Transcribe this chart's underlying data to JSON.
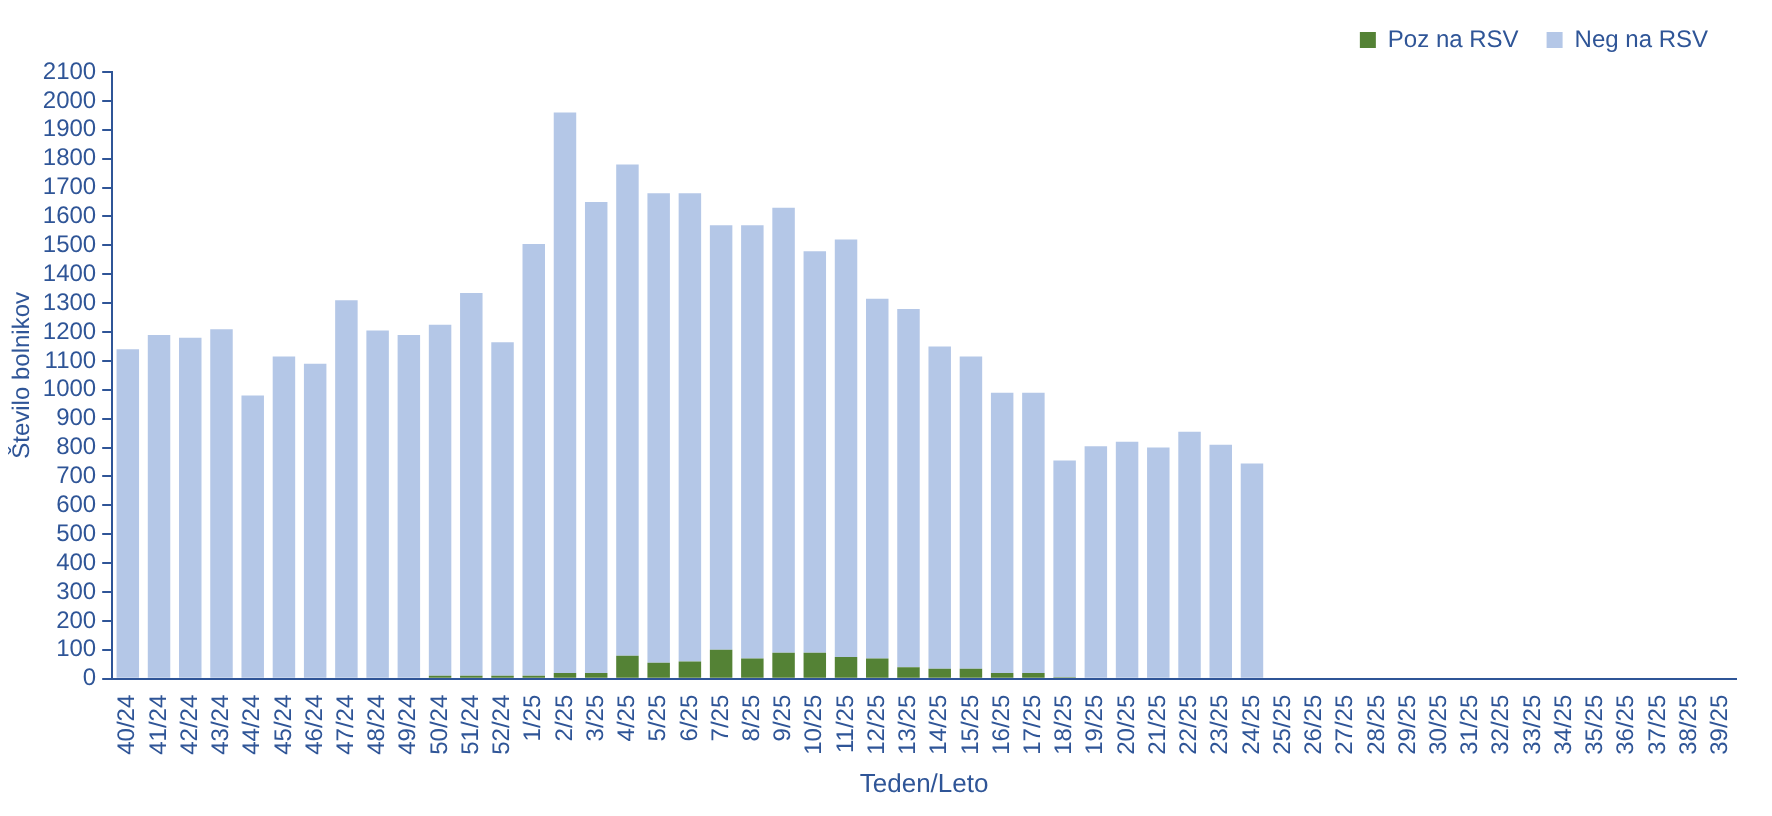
{
  "chart_data": {
    "type": "bar",
    "stacked": true,
    "xlabel": "Teden/Leto",
    "ylabel": "Število bolnikov",
    "categories": [
      "40/24",
      "41/24",
      "42/24",
      "43/24",
      "44/24",
      "45/24",
      "46/24",
      "47/24",
      "48/24",
      "49/24",
      "50/24",
      "51/24",
      "52/24",
      "1/25",
      "2/25",
      "3/25",
      "4/25",
      "5/25",
      "6/25",
      "7/25",
      "8/25",
      "9/25",
      "10/25",
      "11/25",
      "12/25",
      "13/25",
      "14/25",
      "15/25",
      "16/25",
      "17/25",
      "18/25",
      "19/25",
      "20/25",
      "21/25",
      "22/25",
      "23/25",
      "24/25",
      "25/25",
      "26/25",
      "27/25",
      "28/25",
      "29/25",
      "30/25",
      "31/25",
      "32/25",
      "33/25",
      "34/25",
      "35/25",
      "36/25",
      "37/25",
      "38/25",
      "39/25"
    ],
    "series": [
      {
        "name": "Poz na RSV",
        "color": "#548235",
        "values": [
          0,
          0,
          0,
          0,
          0,
          0,
          0,
          0,
          0,
          0,
          10,
          10,
          10,
          10,
          20,
          20,
          80,
          55,
          60,
          100,
          70,
          90,
          90,
          75,
          70,
          40,
          35,
          35,
          20,
          20,
          5,
          0,
          0,
          0,
          0,
          0,
          0,
          null,
          null,
          null,
          null,
          null,
          null,
          null,
          null,
          null,
          null,
          null,
          null,
          null,
          null,
          null
        ]
      },
      {
        "name": "Neg na RSV",
        "color": "#b4c7e7",
        "values": [
          1140,
          1190,
          1180,
          1210,
          980,
          1115,
          1090,
          1310,
          1205,
          1190,
          1215,
          1325,
          1155,
          1495,
          1940,
          1630,
          1700,
          1625,
          1620,
          1470,
          1500,
          1540,
          1390,
          1445,
          1245,
          1240,
          1115,
          1080,
          970,
          970,
          750,
          805,
          820,
          800,
          855,
          810,
          745,
          null,
          null,
          null,
          null,
          null,
          null,
          null,
          null,
          null,
          null,
          null,
          null,
          null,
          null,
          null
        ]
      }
    ],
    "ylim": [
      0,
      2100
    ],
    "yticks": [
      0,
      100,
      200,
      300,
      400,
      500,
      600,
      700,
      800,
      900,
      1000,
      1100,
      1200,
      1300,
      1400,
      1500,
      1600,
      1700,
      1800,
      1900,
      2000,
      2100
    ],
    "grid": false,
    "legend": "top right"
  }
}
